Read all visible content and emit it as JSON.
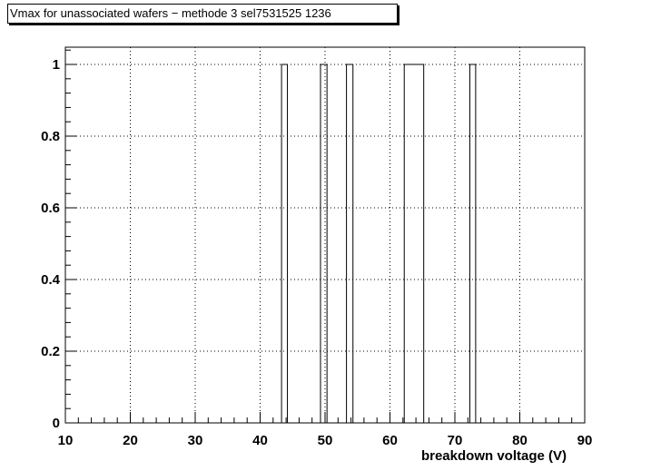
{
  "title": "Vmax for unassociated wafers − methode 3  sel7531525  1236",
  "chart_data": {
    "type": "bar",
    "title": "Vmax for unassociated wafers − methode 3  sel7531525  1236",
    "xlabel": "breakdown voltage (V)",
    "ylabel": "",
    "xlim": [
      10,
      90
    ],
    "ylim": [
      0,
      1.05
    ],
    "grid": true,
    "x_ticks": [
      10,
      20,
      30,
      40,
      50,
      60,
      70,
      80,
      90
    ],
    "y_ticks": [
      0,
      0.2,
      0.4,
      0.6,
      0.8,
      1
    ],
    "bins": [
      {
        "x0": 43.3,
        "x1": 44.2,
        "value": 1
      },
      {
        "x0": 49.3,
        "x1": 50.3,
        "value": 1
      },
      {
        "x0": 53.3,
        "x1": 54.3,
        "value": 1
      },
      {
        "x0": 62.2,
        "x1": 65.2,
        "value": 1
      },
      {
        "x0": 72.3,
        "x1": 73.2,
        "value": 1
      }
    ]
  }
}
